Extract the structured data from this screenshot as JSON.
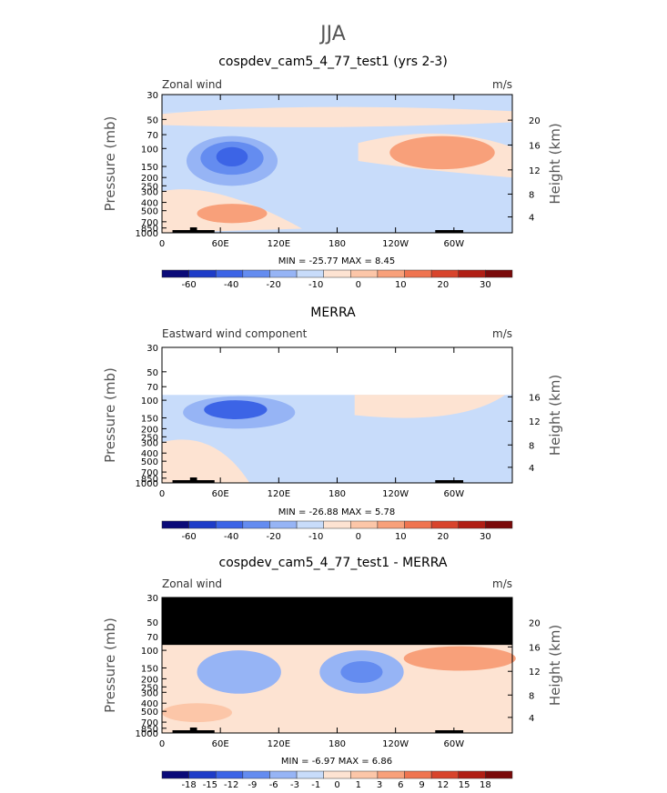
{
  "figure": {
    "title": "JJA"
  },
  "colors": {
    "scale1": [
      "#0a0a78",
      "#1e3cc8",
      "#3c64e6",
      "#648cf0",
      "#96b4f5",
      "#c8dcfa",
      "#fde3d2",
      "#fcc6a8",
      "#f8a07a",
      "#ef7450",
      "#d8442c",
      "#b01e14",
      "#7a0a0a"
    ],
    "scale2": [
      "#0a0a78",
      "#1e3cc8",
      "#3c64e6",
      "#648cf0",
      "#96b4f5",
      "#c8dcfa",
      "#fde3d2",
      "#fcc6a8",
      "#f8a07a",
      "#ef7450",
      "#d8442c",
      "#b01e14",
      "#7a0a0a"
    ]
  },
  "chart_data": [
    {
      "type": "heatmap",
      "title": "cospdev_cam5_4_77_test1 (yrs 2-3)",
      "left_label": "Zonal wind",
      "unit": "m/s",
      "ylabel": "Pressure (mb)",
      "y2label": "Height (km)",
      "pressure_ticks": [
        "30",
        "50",
        "70",
        "100",
        "150",
        "200",
        "250",
        "300",
        "400",
        "500",
        "700",
        "850",
        "1000"
      ],
      "height_ticks": [
        "20",
        "16",
        "12",
        "8",
        "4"
      ],
      "x_ticks": [
        "0",
        "60E",
        "120E",
        "180",
        "120W",
        "60W"
      ],
      "stats": "MIN = -25.77   MAX =   8.45",
      "colorbar_labels": [
        "-60",
        "-40",
        "-20",
        "-10",
        "0",
        "10",
        "20",
        "30"
      ],
      "min": -25.77,
      "max": 8.45
    },
    {
      "type": "heatmap",
      "title": "MERRA",
      "left_label": "Eastward wind component",
      "unit": "m/s",
      "ylabel": "Pressure (mb)",
      "y2label": "Height (km)",
      "pressure_ticks": [
        "30",
        "50",
        "70",
        "100",
        "150",
        "200",
        "250",
        "300",
        "400",
        "500",
        "700",
        "850",
        "1000"
      ],
      "height_ticks": [
        "16",
        "12",
        "8",
        "4"
      ],
      "x_ticks": [
        "0",
        "60E",
        "120E",
        "180",
        "120W",
        "60W"
      ],
      "stats": "MIN = -26.88   MAX =   5.78",
      "colorbar_labels": [
        "-60",
        "-40",
        "-20",
        "-10",
        "0",
        "10",
        "20",
        "30"
      ],
      "min": -26.88,
      "max": 5.78
    },
    {
      "type": "heatmap",
      "title": "cospdev_cam5_4_77_test1 - MERRA",
      "left_label": "Zonal wind",
      "unit": "m/s",
      "ylabel": "Pressure (mb)",
      "y2label": "Height (km)",
      "pressure_ticks": [
        "30",
        "50",
        "70",
        "100",
        "150",
        "200",
        "250",
        "300",
        "400",
        "500",
        "700",
        "850",
        "1000"
      ],
      "height_ticks": [
        "20",
        "16",
        "12",
        "8",
        "4"
      ],
      "x_ticks": [
        "0",
        "60E",
        "120E",
        "180",
        "120W",
        "60W"
      ],
      "stats": "MIN =  -6.97   MAX =   6.86",
      "colorbar_labels": [
        "-18",
        "-15",
        "-12",
        "-9",
        "-6",
        "-3",
        "-1",
        "0",
        "1",
        "3",
        "6",
        "9",
        "12",
        "15",
        "18"
      ],
      "min": -6.97,
      "max": 6.86
    }
  ]
}
